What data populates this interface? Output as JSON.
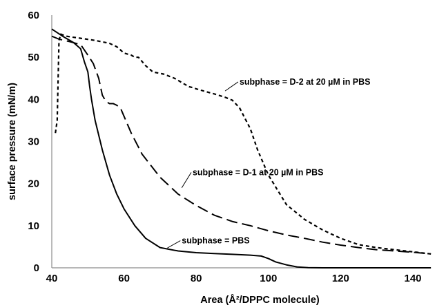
{
  "chart_data": {
    "type": "line",
    "title": "",
    "xlabel": "Area (Å²/DPPC molecule)",
    "ylabel": "surface pressure (mN/m)",
    "xlim": [
      40,
      145
    ],
    "ylim": [
      0,
      60
    ],
    "xticks": [
      40,
      60,
      80,
      100,
      120,
      140
    ],
    "yticks": [
      0,
      10,
      20,
      30,
      40,
      50,
      60
    ],
    "grid": false,
    "legend": "none",
    "series": [
      {
        "name": "subphase = PBS",
        "style": "solid",
        "x": [
          40,
          43,
          46,
          48,
          49,
          50,
          50.5,
          51,
          52,
          54,
          56,
          58,
          60,
          63,
          66,
          70,
          75,
          80,
          85,
          90,
          95,
          98,
          100,
          102,
          105,
          108,
          111,
          115,
          120,
          130,
          145
        ],
        "y": [
          56.7,
          55.0,
          53.5,
          52.0,
          49.0,
          46.5,
          43.0,
          40.0,
          35.0,
          28.0,
          22.0,
          17.5,
          14.0,
          10.0,
          7.0,
          4.8,
          4.0,
          3.6,
          3.4,
          3.2,
          3.0,
          2.8,
          2.2,
          1.4,
          0.7,
          0.2,
          0.05,
          0.0,
          0.0,
          0.0,
          0.0
        ]
      },
      {
        "name": "subphase = D-1 at 20 µM in PBS",
        "style": "long-dash",
        "x": [
          40,
          42,
          45,
          48,
          50,
          51.5,
          53,
          54,
          55,
          56,
          57,
          58,
          59,
          60,
          62,
          65,
          70,
          75,
          80,
          85,
          90,
          95,
          100,
          105,
          110,
          115,
          120,
          125,
          130,
          135,
          140,
          145
        ],
        "y": [
          55.0,
          54.3,
          53.7,
          53.0,
          50.5,
          48.5,
          45.0,
          41.0,
          39.5,
          39.0,
          39.0,
          38.6,
          38.0,
          36.0,
          32.0,
          27.0,
          21.5,
          17.5,
          14.8,
          12.5,
          11.0,
          10.0,
          8.8,
          7.8,
          7.0,
          6.1,
          5.4,
          4.8,
          4.3,
          4.0,
          3.7,
          3.3
        ]
      },
      {
        "name": "subphase = D-2 at 20 µM in PBS",
        "style": "short-dash",
        "x": [
          41,
          41.5,
          42,
          42.5,
          44,
          48,
          52,
          56,
          58,
          60,
          62,
          63,
          64,
          66,
          68,
          71,
          74,
          77,
          78,
          79,
          80,
          82,
          85,
          88,
          90,
          92,
          95,
          97,
          100,
          105,
          110,
          115,
          120,
          125,
          130,
          140,
          145
        ],
        "y": [
          32.0,
          35.0,
          54.0,
          55.5,
          55.0,
          54.5,
          54.0,
          53.3,
          52.5,
          51.0,
          50.5,
          50.0,
          50.0,
          48.0,
          46.5,
          46.0,
          45.0,
          43.5,
          43.0,
          42.8,
          42.5,
          42.0,
          41.3,
          40.5,
          39.8,
          38.0,
          33.0,
          28.0,
          22.0,
          15.0,
          11.5,
          9.0,
          7.0,
          5.5,
          4.8,
          3.8,
          3.3
        ]
      }
    ],
    "annotations": [
      {
        "text": "subphase = D-2 at 20 µM in PBS",
        "x": 88,
        "y": 42,
        "label_x": 92,
        "label_y": 43.5
      },
      {
        "text": "subphase = D-1 at 20 µM in PBS",
        "x": 76,
        "y": 19,
        "label_x": 79,
        "label_y": 22
      },
      {
        "text": "subphase = PBS",
        "x": 72,
        "y": 4.7,
        "label_x": 76,
        "label_y": 5.8
      }
    ]
  }
}
